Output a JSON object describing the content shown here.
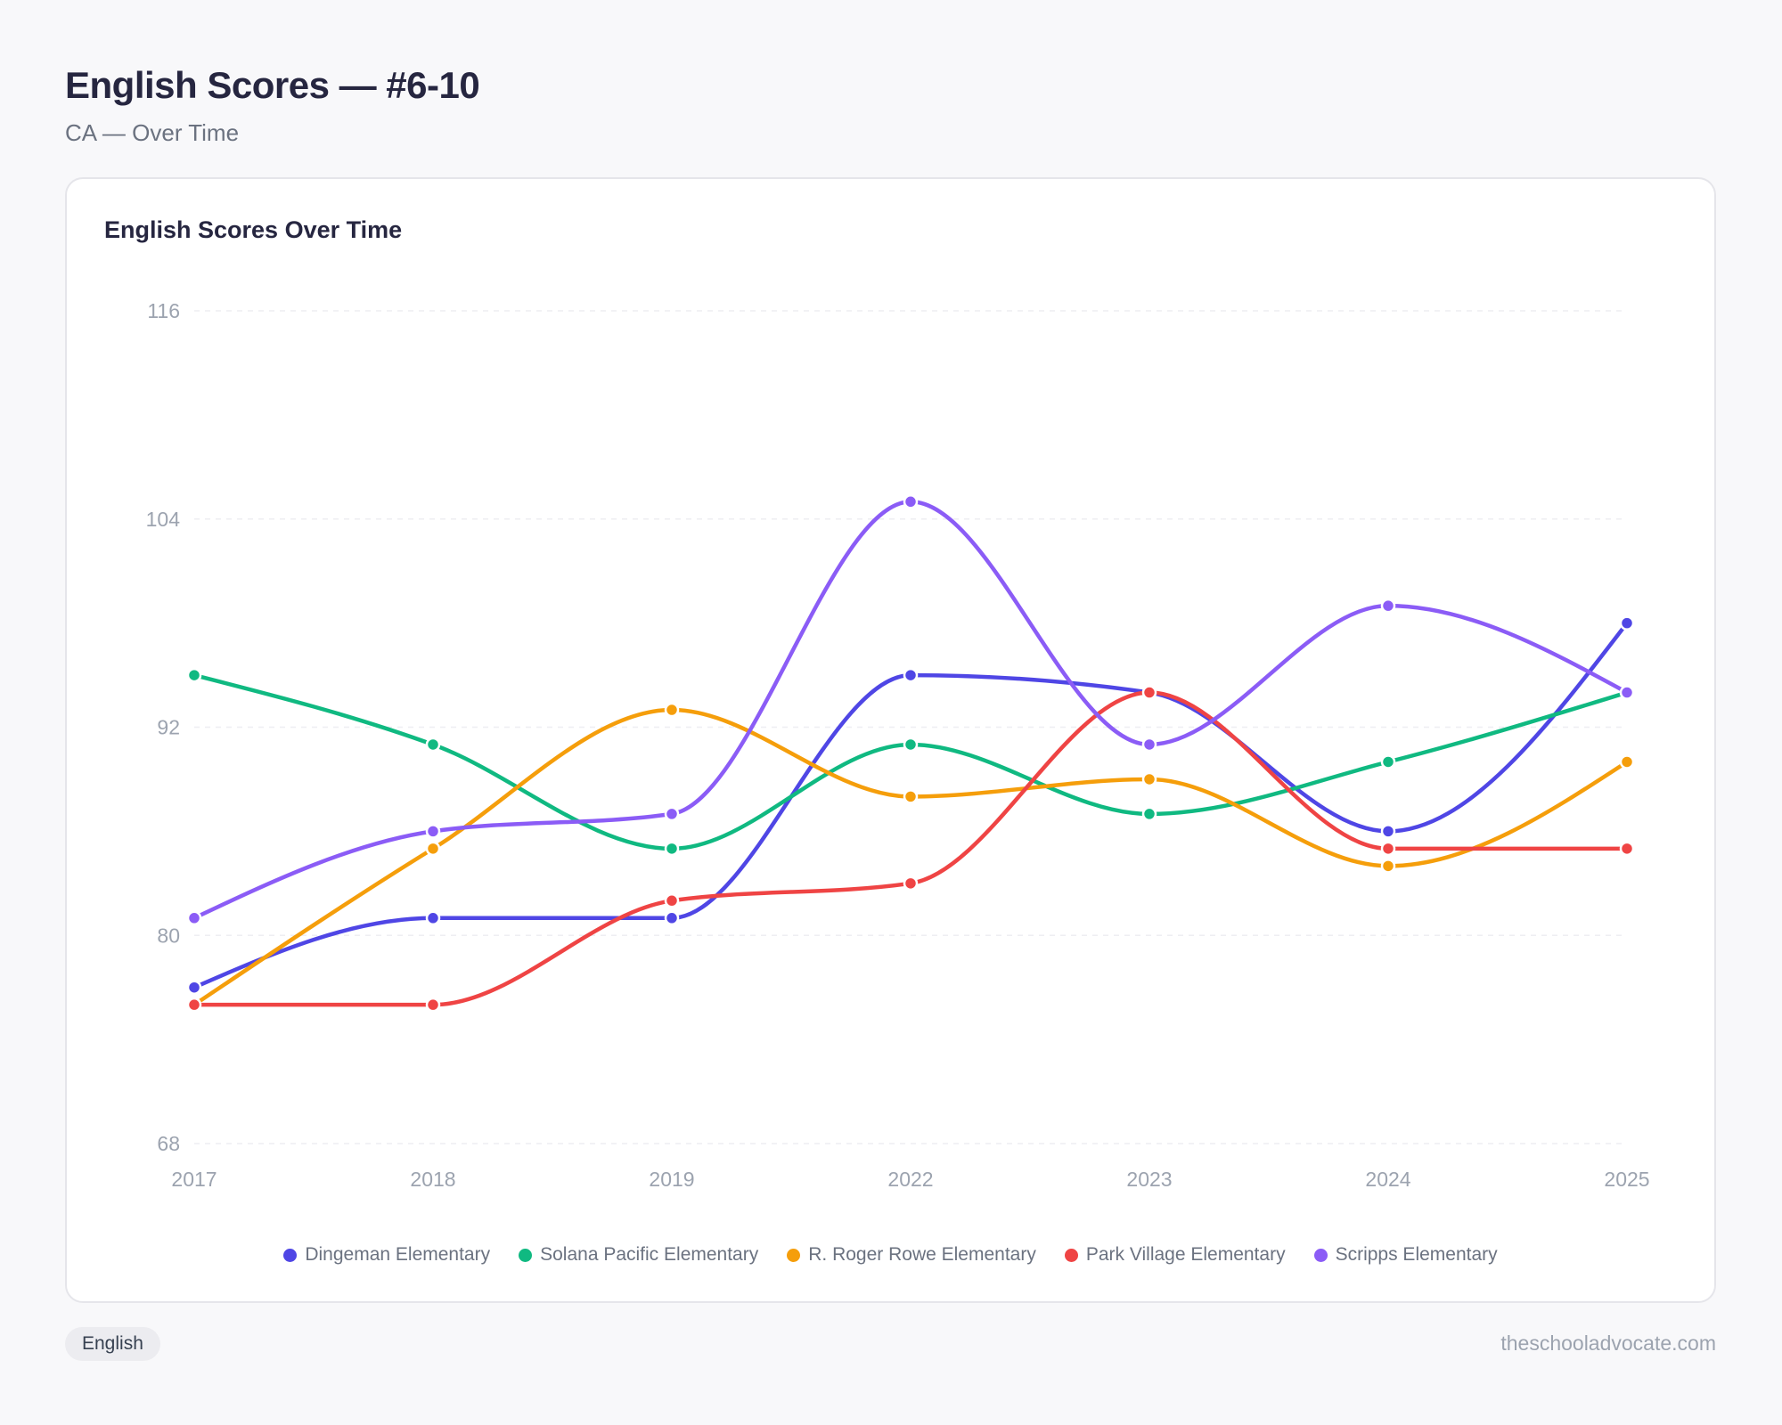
{
  "header": {
    "title": "English Scores — #6-10",
    "subtitle": "CA — Over Time"
  },
  "card": {
    "title": "English Scores Over Time"
  },
  "footer": {
    "badge": "English",
    "site": "theschooladvocate.com"
  },
  "chart_data": {
    "type": "line",
    "title": "English Scores Over Time",
    "xlabel": "",
    "ylabel": "",
    "categories": [
      "2017",
      "2018",
      "2019",
      "2022",
      "2023",
      "2024",
      "2025"
    ],
    "ylim": [
      68,
      116
    ],
    "yticks": [
      68,
      80,
      92,
      104,
      116
    ],
    "grid": true,
    "legend": "bottom",
    "curve": "smooth",
    "series": [
      {
        "name": "Dingeman Elementary",
        "color": "#4f46e5",
        "values": [
          77,
          81,
          81,
          95,
          94,
          86,
          98
        ]
      },
      {
        "name": "Solana Pacific Elementary",
        "color": "#10b981",
        "values": [
          95,
          91,
          85,
          91,
          87,
          90,
          94
        ]
      },
      {
        "name": "R. Roger Rowe Elementary",
        "color": "#f59e0b",
        "values": [
          76,
          85,
          93,
          88,
          89,
          84,
          90
        ]
      },
      {
        "name": "Park Village Elementary",
        "color": "#ef4444",
        "values": [
          76,
          76,
          82,
          83,
          94,
          85,
          85
        ]
      },
      {
        "name": "Scripps Elementary",
        "color": "#8b5cf6",
        "values": [
          81,
          86,
          87,
          105,
          91,
          99,
          94
        ]
      }
    ]
  }
}
